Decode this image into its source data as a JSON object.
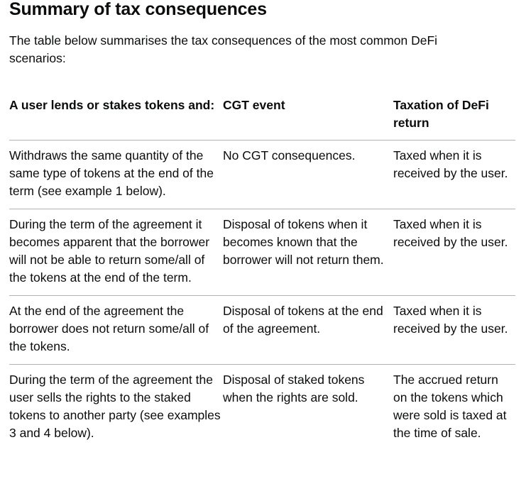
{
  "heading": "Summary of tax consequences",
  "intro": "The table below summarises the tax consequences of the most common DeFi scenarios:",
  "table": {
    "headers": [
      "A user lends or stakes tokens and:",
      "CGT event",
      "Taxation of DeFi return"
    ],
    "rows": [
      [
        "Withdraws the same quantity of the same type of tokens at the end of the term (see example 1 below).",
        "No CGT consequences.",
        "Taxed when it is received by the user."
      ],
      [
        "During the term of the agreement it becomes apparent that the borrower will not be able to return some/all of the tokens at the end of the term.",
        "Disposal of tokens when it becomes known that the borrower will not return them.",
        "Taxed when it is received by the user."
      ],
      [
        "At the end of the agreement the borrower does not return some/all of the tokens.",
        "Disposal of tokens at the end of the agreement.",
        "Taxed when it is received by the user."
      ],
      [
        "During the term of the agreement the user sells the rights to the staked tokens to another party (see examples 3 and 4 below).",
        "Disposal of staked tokens when the rights are sold.",
        "The accrued return on the tokens which were sold is taxed at the time of sale."
      ]
    ]
  }
}
